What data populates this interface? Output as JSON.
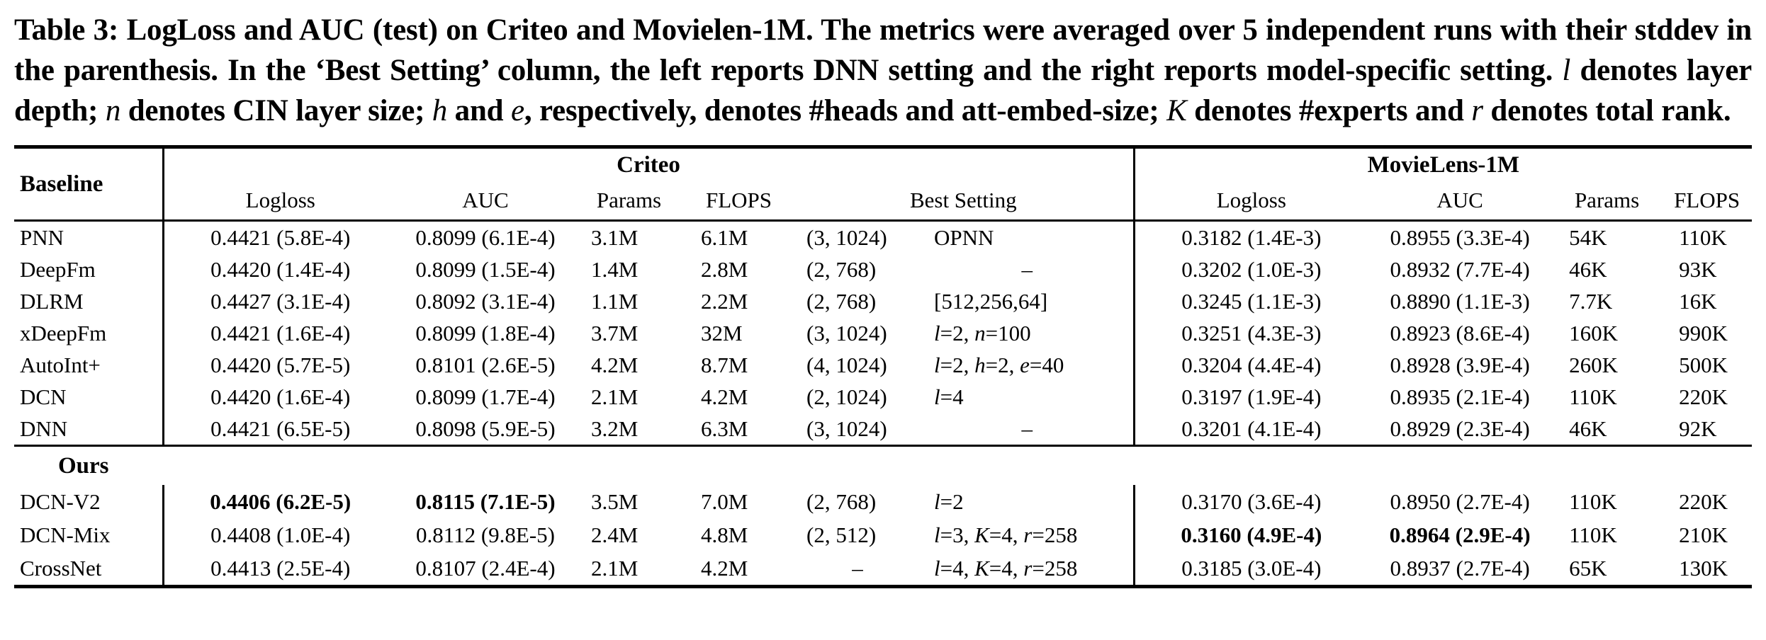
{
  "caption": {
    "text": "Table 3: LogLoss and AUC (test) on Criteo and Movielen-1M. The metrics were averaged over 5 independent runs with their stddev in the parenthesis. In the ‘Best Setting’ column, the left reports DNN setting and the right reports model-specific setting. l denotes layer depth; n denotes CIN layer size; h and e, respectively, denotes #heads and att-embed-size; K denotes #experts and r denotes total rank."
  },
  "table": {
    "baseline_header": "Baseline",
    "criteo_label": "Criteo",
    "movielens_label": "MovieLens-1M",
    "columns": {
      "logloss": "Logloss",
      "auc": "AUC",
      "params": "Params",
      "flops": "FLOPS",
      "best_setting": "Best Setting"
    },
    "sections": [
      {
        "rows": [
          {
            "name": "PNN",
            "criteo": {
              "logloss": "0.4421 (5.8E-4)",
              "auc": "0.8099 (6.1E-4)",
              "params": "3.1M",
              "flops": "6.1M",
              "dnn": "(3, 1024)",
              "model": "OPNN"
            },
            "movielens": {
              "logloss": "0.3182 (1.4E-3)",
              "auc": "0.8955 (3.3E-4)",
              "params": "54K",
              "flops": "110K"
            }
          },
          {
            "name": "DeepFm",
            "criteo": {
              "logloss": "0.4420 (1.4E-4)",
              "auc": "0.8099 (1.5E-4)",
              "params": "1.4M",
              "flops": "2.8M",
              "dnn": "(2, 768)",
              "model": "–"
            },
            "movielens": {
              "logloss": "0.3202 (1.0E-3)",
              "auc": "0.8932 (7.7E-4)",
              "params": "46K",
              "flops": "93K"
            }
          },
          {
            "name": "DLRM",
            "criteo": {
              "logloss": "0.4427 (3.1E-4)",
              "auc": "0.8092 (3.1E-4)",
              "params": "1.1M",
              "flops": "2.2M",
              "dnn": "(2, 768)",
              "model": "[512,256,64]"
            },
            "movielens": {
              "logloss": "0.3245 (1.1E-3)",
              "auc": "0.8890 (1.1E-3)",
              "params": "7.7K",
              "flops": "16K"
            }
          },
          {
            "name": "xDeepFm",
            "criteo": {
              "logloss": "0.4421 (1.6E-4)",
              "auc": "0.8099 (1.8E-4)",
              "params": "3.7M",
              "flops": "32M",
              "dnn": "(3, 1024)",
              "model": "l=2, n=100"
            },
            "movielens": {
              "logloss": "0.3251 (4.3E-3)",
              "auc": "0.8923 (8.6E-4)",
              "params": "160K",
              "flops": "990K"
            }
          },
          {
            "name": "AutoInt+",
            "criteo": {
              "logloss": "0.4420 (5.7E-5)",
              "auc": "0.8101 (2.6E-5)",
              "params": "4.2M",
              "flops": "8.7M",
              "dnn": "(4, 1024)",
              "model": "l=2, h=2, e=40"
            },
            "movielens": {
              "logloss": "0.3204 (4.4E-4)",
              "auc": "0.8928 (3.9E-4)",
              "params": "260K",
              "flops": "500K"
            }
          },
          {
            "name": "DCN",
            "criteo": {
              "logloss": "0.4420 (1.6E-4)",
              "auc": "0.8099 (1.7E-4)",
              "params": "2.1M",
              "flops": "4.2M",
              "dnn": "(2, 1024)",
              "model": "l=4"
            },
            "movielens": {
              "logloss": "0.3197 (1.9E-4)",
              "auc": "0.8935 (2.1E-4)",
              "params": "110K",
              "flops": "220K"
            }
          },
          {
            "name": "DNN",
            "criteo": {
              "logloss": "0.4421 (6.5E-5)",
              "auc": "0.8098 (5.9E-5)",
              "params": "3.2M",
              "flops": "6.3M",
              "dnn": "(3, 1024)",
              "model": "–"
            },
            "movielens": {
              "logloss": "0.3201 (4.1E-4)",
              "auc": "0.8929 (2.3E-4)",
              "params": "46K",
              "flops": "92K"
            }
          }
        ]
      },
      {
        "label": "Ours",
        "rows": [
          {
            "name": "DCN-V2",
            "criteo": {
              "logloss": "0.4406 (6.2E-5)",
              "auc": "0.8115 (7.1E-5)",
              "params": "3.5M",
              "flops": "7.0M",
              "dnn": "(2, 768)",
              "model": "l=2"
            },
            "movielens": {
              "logloss": "0.3170 (3.6E-4)",
              "auc": "0.8950 (2.7E-4)",
              "params": "110K",
              "flops": "220K"
            }
          },
          {
            "name": "DCN-Mix",
            "criteo": {
              "logloss": "0.4408 (1.0E-4)",
              "auc": "0.8112 (9.8E-5)",
              "params": "2.4M",
              "flops": "4.8M",
              "dnn": "(2, 512)",
              "model": "l=3, K=4, r=258"
            },
            "movielens": {
              "logloss": "0.3160 (4.9E-4)",
              "auc": "0.8964 (2.9E-4)",
              "params": "110K",
              "flops": "210K"
            }
          },
          {
            "name": "CrossNet",
            "criteo": {
              "logloss": "0.4413 (2.5E-4)",
              "auc": "0.8107 (2.4E-4)",
              "params": "2.1M",
              "flops": "4.2M",
              "dnn": "–",
              "model": "l=4, K=4, r=258"
            },
            "movielens": {
              "logloss": "0.3185 (3.0E-4)",
              "auc": "0.8937 (2.7E-4)",
              "params": "65K",
              "flops": "130K"
            }
          }
        ]
      }
    ]
  }
}
